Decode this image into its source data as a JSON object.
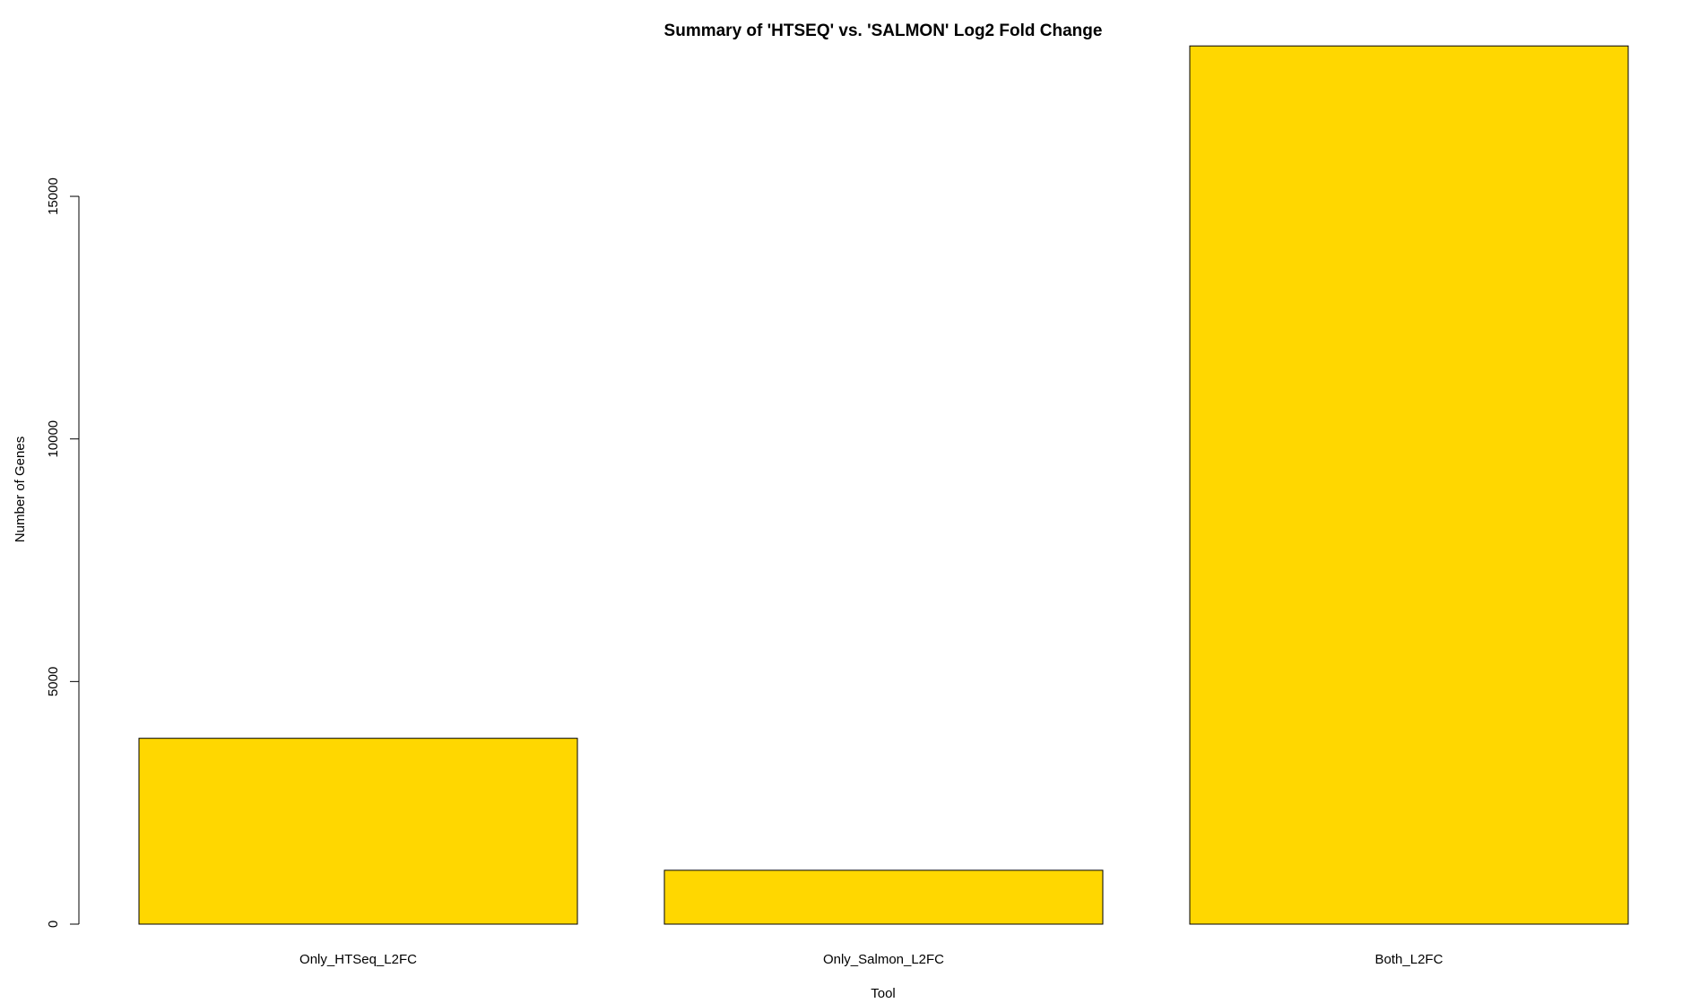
{
  "chart_data": {
    "type": "bar",
    "title": "Summary of 'HTSEQ' vs. 'SALMON' Log2 Fold Change",
    "xlabel": "Tool",
    "ylabel": "Number of Genes",
    "categories": [
      "Only_HTSeq_L2FC",
      "Only_Salmon_L2FC",
      "Both_L2FC"
    ],
    "values": [
      3830,
      1110,
      18100
    ],
    "yticks": [
      0,
      5000,
      10000,
      15000
    ],
    "ylim": [
      0,
      18100
    ],
    "grid": false,
    "legend": "none",
    "bar_color": "#FFD700",
    "bar_edge_color": "#000000"
  }
}
